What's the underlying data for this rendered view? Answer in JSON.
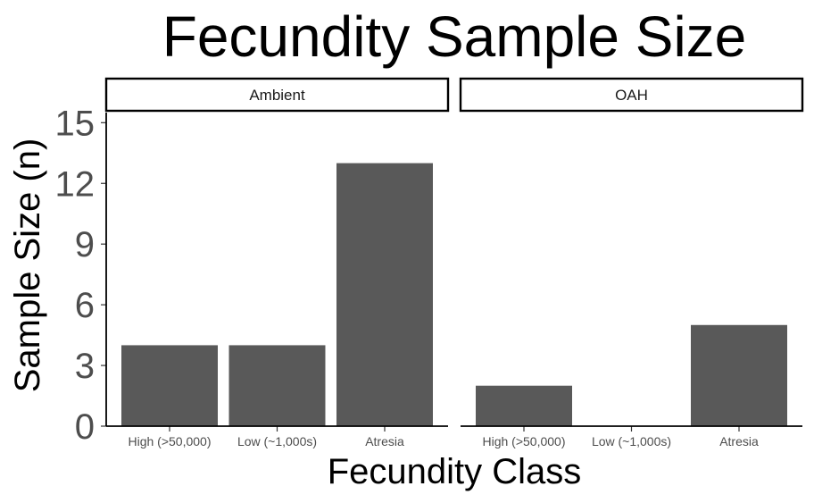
{
  "chart_data": {
    "type": "bar",
    "title": "Fecundity Sample Size",
    "xlabel": "Fecundity Class",
    "ylabel": "Sample Size (n)",
    "ylim": [
      0,
      15.5
    ],
    "yticks": [
      0,
      3,
      6,
      9,
      12,
      15
    ],
    "categories": [
      "High (>50,000)",
      "Low (~1,000s)",
      "Atresia"
    ],
    "bar_color": "#595959",
    "grid": false,
    "panels": [
      {
        "name": "Ambient",
        "values": [
          4,
          4,
          13
        ]
      },
      {
        "name": "OAH",
        "values": [
          2,
          0,
          5
        ]
      }
    ]
  }
}
